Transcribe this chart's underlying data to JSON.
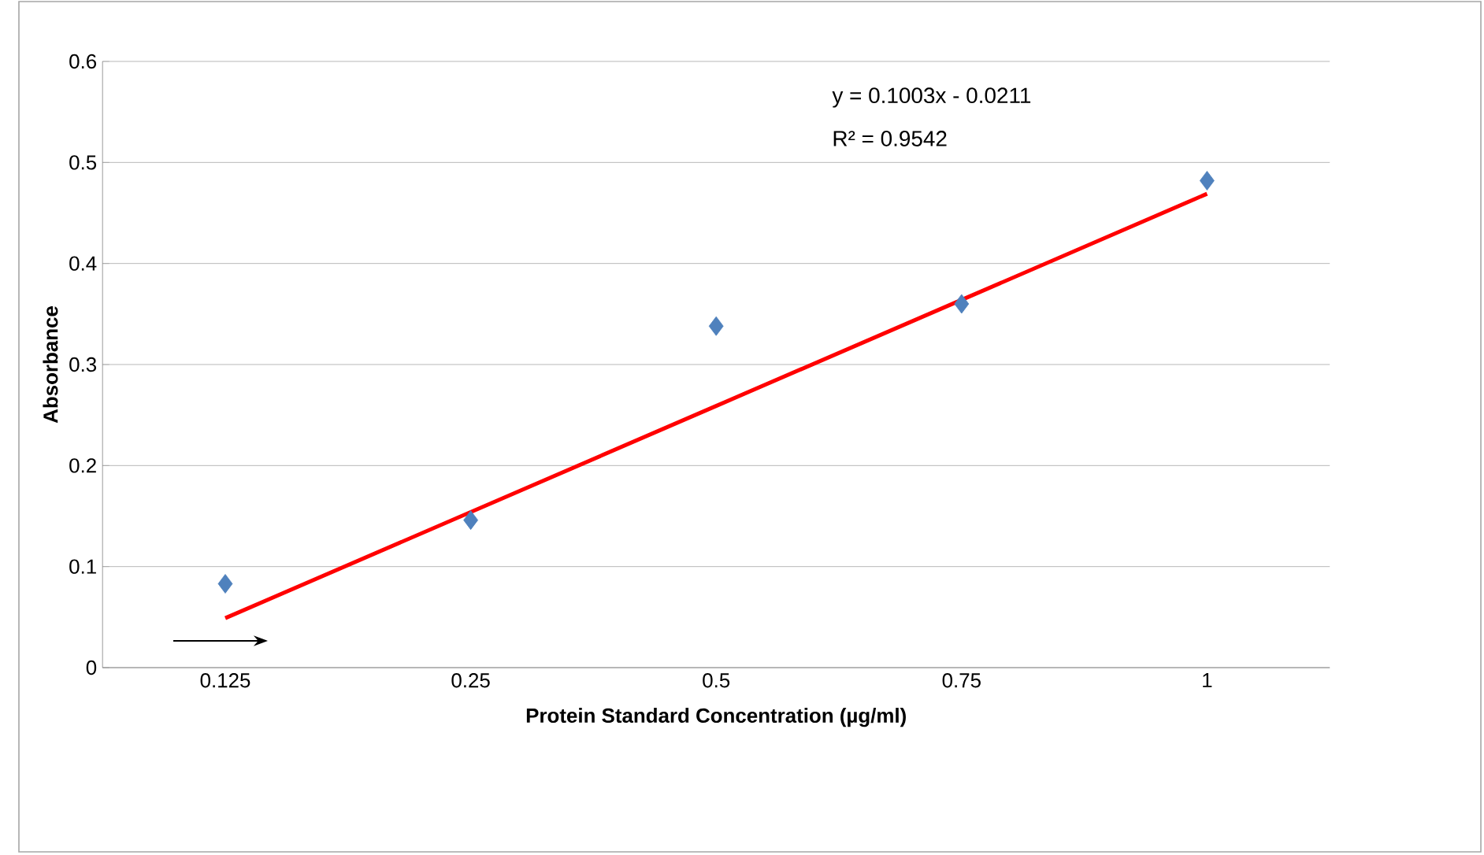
{
  "chart_data": {
    "type": "scatter",
    "xlabel": "Protein Standard Concentration (µg/ml)",
    "ylabel": "Absorbance",
    "categories": [
      "0.125",
      "0.25",
      "0.5",
      "0.75",
      "1"
    ],
    "series": [
      {
        "color": "#4f81bd",
        "marker": "diamond",
        "values": [
          0.083,
          0.146,
          0.338,
          0.36,
          0.482
        ]
      },
      {
        "type": "line",
        "color": "#ff0000",
        "marker": "none",
        "values": [
          0.049,
          0.154,
          0.259,
          0.364,
          0.469
        ]
      }
    ],
    "ylim": [
      0,
      0.6
    ],
    "yticks": [
      0,
      0.1,
      0.2,
      0.3,
      0.4,
      0.5,
      0.6
    ],
    "grid": "y",
    "annotations": [
      "y = 0.1003x - 0.0211",
      "R² = 0.9542"
    ]
  }
}
